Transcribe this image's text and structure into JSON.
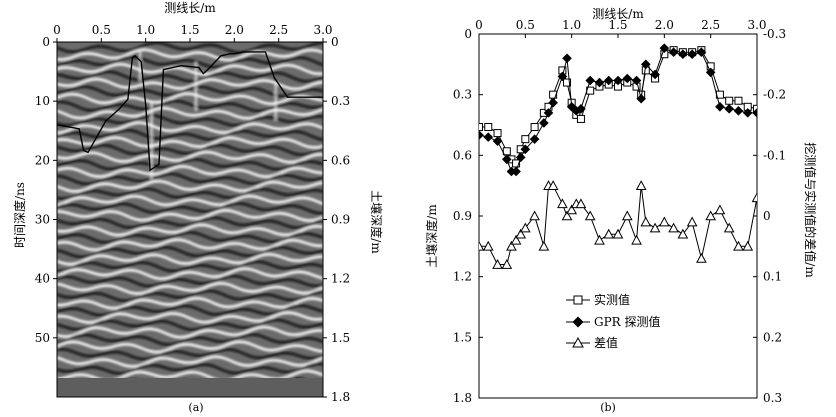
{
  "chart_data": [
    {
      "type": "image",
      "panel_label": "(a)",
      "title": "测线长/m",
      "xlabel": "测线长/m",
      "ylabel_left": "时间深度/ns",
      "ylabel_right": "土壤深度/m",
      "x_ticks": [
        "0",
        "0.5",
        "1.0",
        "1.5",
        "2.0",
        "2.5",
        "3.0"
      ],
      "xlim": [
        0,
        3.0
      ],
      "y_left_ticks": [
        "0",
        "10",
        "20",
        "30",
        "40",
        "50"
      ],
      "y_left_lim": [
        0,
        60
      ],
      "y_right_ticks": [
        "0",
        "0.3",
        "0.6",
        "0.9",
        "1.2",
        "1.5",
        "1.8"
      ],
      "y_right_lim": [
        0,
        1.8
      ],
      "gpr_interface": {
        "x": [
          0.0,
          0.25,
          0.3,
          0.35,
          0.45,
          0.55,
          0.7,
          0.8,
          0.85,
          0.88,
          0.95,
          1.0,
          1.05,
          1.15,
          1.2,
          1.4,
          1.6,
          1.65,
          1.7,
          1.85,
          1.95,
          2.0,
          2.1,
          2.35,
          2.45,
          2.6,
          3.0
        ],
        "y": [
          0.42,
          0.44,
          0.55,
          0.56,
          0.48,
          0.4,
          0.34,
          0.29,
          0.08,
          0.07,
          0.1,
          0.32,
          0.65,
          0.62,
          0.14,
          0.12,
          0.13,
          0.16,
          0.14,
          0.07,
          0.06,
          0.06,
          0.05,
          0.05,
          0.18,
          0.28,
          0.28
        ]
      }
    },
    {
      "type": "line",
      "panel_label": "(b)",
      "title": "测线长/m",
      "xlabel": "测线长/m",
      "ylabel": "土壤深度/m",
      "ylabel_right": "挖测值与实测值的差值/m",
      "xlim": [
        0,
        3.0
      ],
      "ylim": [
        0,
        1.8
      ],
      "y_inverted": true,
      "y2lim": [
        -0.3,
        0.3
      ],
      "x_ticks": [
        "0",
        "0.5",
        "1.0",
        "1.5",
        "2.0",
        "2.5",
        "3.0"
      ],
      "y_ticks": [
        "0",
        "0.3",
        "0.6",
        "0.9",
        "1.2",
        "1.5",
        "1.8"
      ],
      "y2_ticks": [
        "-0.3",
        "-0.2",
        "-0.1",
        "0",
        "0.1",
        "0.2",
        "0.3"
      ],
      "legend_position": "bottom-left",
      "x": [
        0.0,
        0.1,
        0.2,
        0.3,
        0.35,
        0.4,
        0.45,
        0.5,
        0.6,
        0.7,
        0.75,
        0.8,
        0.9,
        0.95,
        1.0,
        1.05,
        1.1,
        1.2,
        1.3,
        1.4,
        1.5,
        1.6,
        1.7,
        1.75,
        1.8,
        1.9,
        2.0,
        2.1,
        2.2,
        2.3,
        2.4,
        2.5,
        2.6,
        2.7,
        2.8,
        2.9,
        3.0
      ],
      "series": [
        {
          "name": "实测值",
          "marker": "open-square",
          "values": [
            0.46,
            0.46,
            0.49,
            0.58,
            0.62,
            0.64,
            0.57,
            0.52,
            0.46,
            0.39,
            0.36,
            0.3,
            0.18,
            0.24,
            0.34,
            0.4,
            0.42,
            0.28,
            0.26,
            0.25,
            0.26,
            0.24,
            0.26,
            0.3,
            0.18,
            0.22,
            0.1,
            0.08,
            0.09,
            0.09,
            0.08,
            0.16,
            0.3,
            0.33,
            0.33,
            0.36,
            0.37
          ]
        },
        {
          "name": "GPR 探测值",
          "marker": "filled-diamond",
          "values": [
            0.5,
            0.51,
            0.53,
            0.62,
            0.68,
            0.68,
            0.61,
            0.57,
            0.52,
            0.44,
            0.39,
            0.34,
            0.21,
            0.12,
            0.36,
            0.38,
            0.37,
            0.23,
            0.24,
            0.23,
            0.23,
            0.22,
            0.23,
            0.32,
            0.15,
            0.2,
            0.07,
            0.09,
            0.1,
            0.1,
            0.09,
            0.19,
            0.36,
            0.37,
            0.38,
            0.39,
            0.39
          ]
        },
        {
          "name": "差值",
          "axis": "right",
          "marker": "open-triangle",
          "values": [
            0.05,
            0.05,
            0.08,
            0.08,
            0.05,
            0.04,
            0.03,
            0.02,
            0.0,
            0.05,
            -0.05,
            -0.05,
            -0.02,
            0.0,
            -0.01,
            -0.02,
            -0.02,
            0.0,
            0.04,
            0.03,
            0.03,
            0.0,
            0.04,
            -0.05,
            0.01,
            0.02,
            0.01,
            0.02,
            0.03,
            0.01,
            0.07,
            0.0,
            -0.01,
            0.02,
            0.05,
            0.05,
            -0.03
          ]
        }
      ]
    }
  ]
}
